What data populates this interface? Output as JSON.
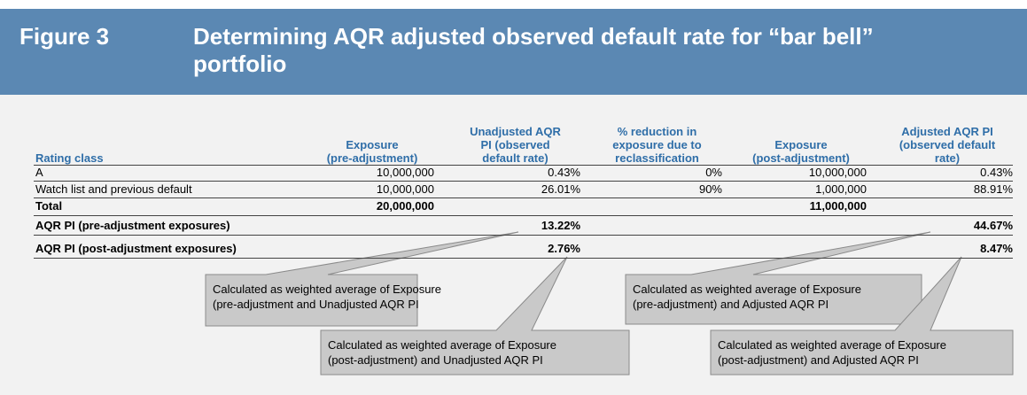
{
  "header": {
    "figure": "Figure 3",
    "title_lines": [
      "Determining AQR adjusted observed default rate for “bar bell”",
      "portfolio"
    ]
  },
  "table": {
    "columns": [
      [
        "Rating class"
      ],
      [
        "Exposure",
        "(pre-adjustment)"
      ],
      [
        "Unadjusted AQR",
        "PI (observed",
        "default rate)"
      ],
      [
        "% reduction in",
        "exposure due to",
        "reclassification"
      ],
      [
        "Exposure",
        "(post-adjustment)"
      ],
      [
        "Adjusted AQR PI",
        "(observed default",
        "rate)"
      ]
    ],
    "rows": [
      [
        "A",
        "10,000,000",
        "0.43%",
        "0%",
        "10,000,000",
        "0.43%"
      ],
      [
        "Watch list and previous default",
        "10,000,000",
        "26.01%",
        "90%",
        "1,000,000",
        "88.91%"
      ],
      [
        "Total",
        "20,000,000",
        null,
        null,
        "11,000,000",
        null
      ],
      [
        "AQR PI (pre-adjustment exposures)",
        null,
        "13.22%",
        null,
        null,
        "44.67%"
      ],
      [
        "AQR PI (post-adjustment exposures)",
        null,
        "2.76%",
        null,
        null,
        "8.47%"
      ]
    ]
  },
  "callouts": [
    [
      "Calculated as weighted average of Exposure",
      "(pre-adjustment and Unadjusted AQR PI"
    ],
    [
      "Calculated as weighted average of Exposure",
      "(post-adjustment) and Unadjusted AQR PI"
    ],
    [
      "Calculated as weighted average of Exposure",
      "(pre-adjustment) and Adjusted AQR PI"
    ],
    [
      "Calculated as weighted average of Exposure",
      "(post-adjustment) and Adjusted AQR PI"
    ]
  ]
}
